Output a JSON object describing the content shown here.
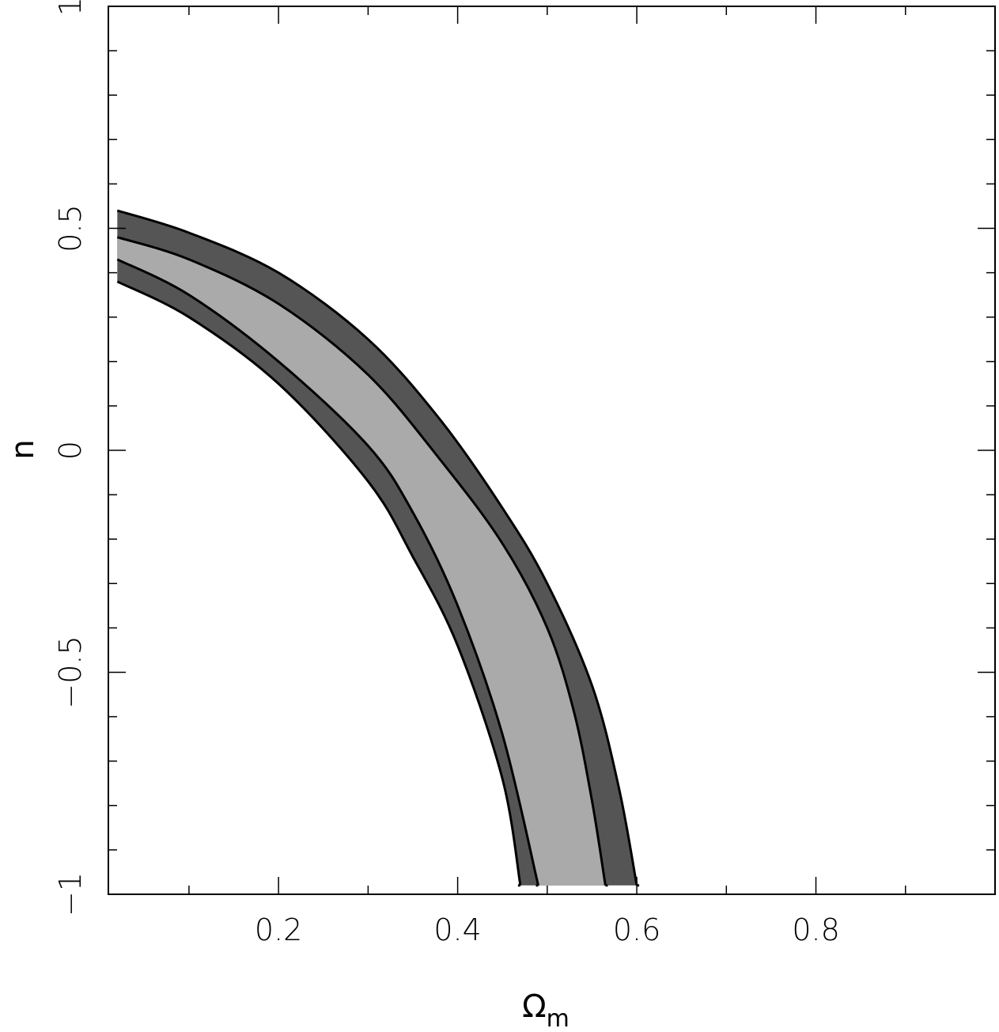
{
  "chart_data": {
    "type": "area",
    "xlabel": "Ω",
    "xlabel_sub": "m",
    "ylabel": "n",
    "xlim": [
      0.01,
      1.0
    ],
    "ylim": [
      -1,
      1
    ],
    "x_ticks": [
      0.2,
      0.4,
      0.6,
      0.8
    ],
    "x_tick_labels": [
      "0.2",
      "0.4",
      "0.6",
      "0.8"
    ],
    "y_ticks": [
      -1,
      -0.5,
      0,
      0.5,
      1
    ],
    "y_tick_labels": [
      "−1",
      "−0.5",
      "0",
      "0.5",
      "1"
    ],
    "grid": false,
    "colors": {
      "outer_band": "#555555",
      "inner_band": "#aaaaaa",
      "contour": "#000000"
    },
    "contours": [
      {
        "level": "outer",
        "upper": [
          [
            0.02,
            0.54
          ],
          [
            0.1,
            0.49
          ],
          [
            0.2,
            0.4
          ],
          [
            0.3,
            0.25
          ],
          [
            0.38,
            0.07
          ],
          [
            0.45,
            -0.13
          ],
          [
            0.5,
            -0.3
          ],
          [
            0.55,
            -0.53
          ],
          [
            0.58,
            -0.76
          ],
          [
            0.6,
            -0.98
          ]
        ],
        "lower": [
          [
            0.02,
            0.38
          ],
          [
            0.1,
            0.3
          ],
          [
            0.2,
            0.15
          ],
          [
            0.3,
            -0.07
          ],
          [
            0.35,
            -0.24
          ],
          [
            0.4,
            -0.44
          ],
          [
            0.45,
            -0.74
          ],
          [
            0.47,
            -0.98
          ]
        ]
      },
      {
        "level": "inner",
        "upper": [
          [
            0.02,
            0.48
          ],
          [
            0.1,
            0.43
          ],
          [
            0.2,
            0.33
          ],
          [
            0.3,
            0.17
          ],
          [
            0.38,
            -0.02
          ],
          [
            0.45,
            -0.21
          ],
          [
            0.5,
            -0.4
          ],
          [
            0.53,
            -0.59
          ],
          [
            0.55,
            -0.79
          ],
          [
            0.565,
            -0.98
          ]
        ],
        "lower": [
          [
            0.02,
            0.43
          ],
          [
            0.1,
            0.35
          ],
          [
            0.2,
            0.2
          ],
          [
            0.3,
            0.01
          ],
          [
            0.35,
            -0.14
          ],
          [
            0.4,
            -0.35
          ],
          [
            0.45,
            -0.64
          ],
          [
            0.49,
            -0.98
          ]
        ]
      }
    ]
  }
}
